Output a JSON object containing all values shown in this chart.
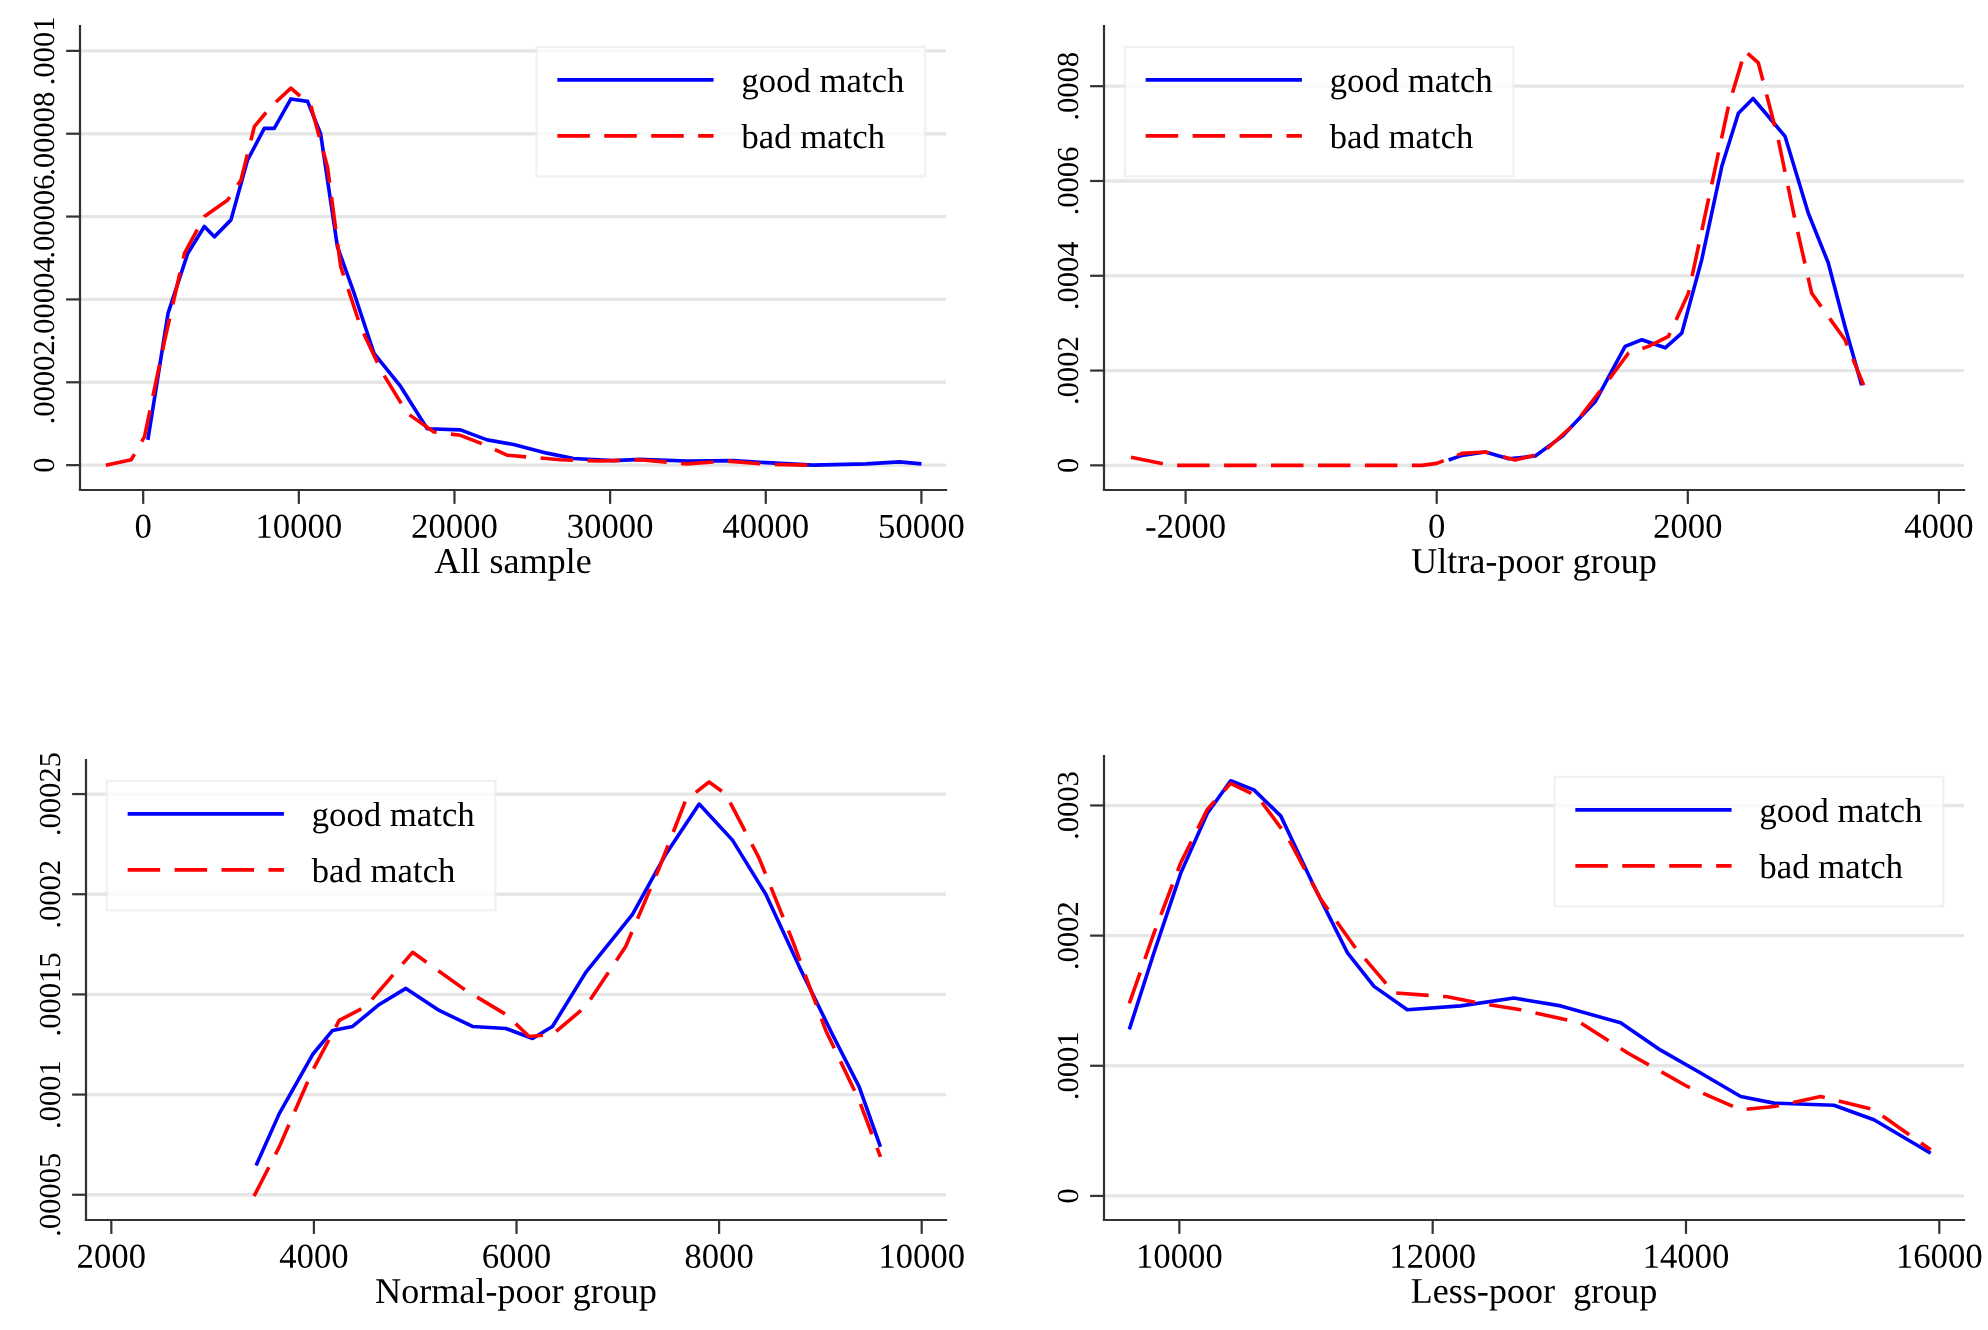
{
  "chart_data": [
    {
      "type": "line",
      "xlabel": "All sample",
      "xlim": [
        -4060,
        51580
      ],
      "ylim": [
        -6e-06,
        0.000106
      ],
      "xticks": [
        0,
        10000,
        20000,
        30000,
        40000,
        50000
      ],
      "yticks": [
        0,
        {
          "value": 2e-05,
          "label": ".00002"
        },
        {
          "value": 4e-05,
          "label": ".00004"
        },
        {
          "value": 6e-05,
          "label": ".00006"
        },
        {
          "value": 8e-05,
          "label": ".00008"
        },
        {
          "value": 0.0001,
          "label": ".0001"
        }
      ],
      "grid": "y",
      "legend": "top right",
      "series": [
        {
          "name": "good match",
          "color": "#0000ff",
          "line_style": "solid",
          "x": [
            300,
            1600,
            2860,
            3930,
            4570,
            5640,
            6700,
            7780,
            8420,
            9490,
            10560,
            11400,
            12480,
            13550,
            14830,
            16540,
            18250,
            20380,
            22100,
            23800,
            25940,
            27650,
            30210,
            31920,
            34910,
            37900,
            40040,
            43030,
            46450,
            48590,
            50000
          ],
          "values": [
            6.1e-06,
            3.67e-05,
            5.11e-05,
            5.76e-05,
            5.51e-05,
            5.92e-05,
            7.36e-05,
            8.13e-05,
            8.13e-05,
            8.84e-05,
            8.78e-05,
            8e-05,
            5.27e-05,
            4.15e-05,
            2.7e-05,
            1.9e-05,
            8.8e-06,
            8.5e-06,
            6.1e-06,
            5e-06,
            2.9e-06,
            1.6e-06,
            1.1e-06,
            1.4e-06,
            1e-06,
            1.1e-06,
            6e-07,
            0,
            3e-07,
            8e-07,
            3e-07
          ]
        },
        {
          "name": "bad match",
          "color": "#ff0000",
          "line_style": "dashed",
          "x": [
            -2400,
            -770,
            85,
            1370,
            2650,
            3930,
            5430,
            6280,
            7140,
            8200,
            9490,
            10770,
            11840,
            12690,
            13970,
            15260,
            16970,
            18680,
            20380,
            21670,
            23380,
            26800,
            29360,
            31920,
            34910,
            37470,
            40040,
            42820
          ],
          "values": [
            0,
            1.3e-06,
            6.9e-06,
            3e-05,
            5.11e-05,
            6e-05,
            6.4e-05,
            6.88e-05,
            8.17e-05,
            8.65e-05,
            9.1e-05,
            8.68e-05,
            7.2e-05,
            4.79e-05,
            3.34e-05,
            2.3e-05,
            1.25e-05,
            8e-06,
            7.2e-06,
            5.3e-06,
            2.4e-06,
            1.3e-06,
            1e-06,
            1.3e-06,
            3e-07,
            1e-06,
            2e-07,
            0
          ]
        }
      ]
    },
    {
      "type": "line",
      "xlabel": "Ultra-poor group",
      "xlim": [
        -2650,
        4200
      ],
      "ylim": [
        -5.2e-05,
        0.000927
      ],
      "xticks": [
        -2000,
        0,
        2000,
        4000
      ],
      "yticks": [
        0,
        {
          "value": 0.0002,
          "label": ".0002"
        },
        {
          "value": 0.0004,
          "label": ".0004"
        },
        {
          "value": 0.0006,
          "label": ".0006"
        },
        {
          "value": 0.0008,
          "label": ".0008"
        }
      ],
      "grid": "y",
      "legend": "top left",
      "series": [
        {
          "name": "good match",
          "color": "#0000ff",
          "line_style": "solid",
          "x": [
            95,
            202,
            387,
            573,
            785,
            997,
            1262,
            1501,
            1634,
            1820,
            1952,
            2111,
            2271,
            2403,
            2520,
            2642,
            2775,
            2960,
            3119,
            3252,
            3385
          ],
          "values": [
            1.13e-05,
            2.11e-05,
            2.82e-05,
            1.41e-05,
            1.97e-05,
            6.06e-05,
            0.000134,
            0.000251,
            0.000265,
            0.000248,
            0.000279,
            0.000434,
            0.000631,
            0.000743,
            0.000774,
            0.000736,
            0.000694,
            0.000532,
            0.000427,
            0.000293,
            0.000169
          ]
        },
        {
          "name": "bad match",
          "color": "#ff0000",
          "line_style": "dashed",
          "x": [
            -2435,
            -2117,
            -117,
            0,
            202,
            387,
            626,
            838,
            1103,
            1369,
            1528,
            1687,
            1846,
            2005,
            2164,
            2324,
            2456,
            2562,
            2721,
            2854,
            2987,
            3119,
            3252,
            3401
          ],
          "values": [
            1.7e-05,
            0,
            0,
            4.2e-06,
            2.53e-05,
            2.82e-05,
            1.13e-05,
            2.53e-05,
            8.87e-05,
            0.00018,
            0.000237,
            0.000251,
            0.000272,
            0.000363,
            0.00056,
            0.000758,
            0.000874,
            0.000849,
            0.000687,
            0.000518,
            0.000363,
            0.000314,
            0.000265,
            0.000169
          ]
        }
      ]
    },
    {
      "type": "line",
      "xlabel": "Normal-poor group",
      "xlim": [
        1750,
        10240
      ],
      "ylim": [
        3.74e-05,
        0.000267
      ],
      "xticks": [
        2000,
        4000,
        6000,
        8000,
        10000
      ],
      "yticks": [
        {
          "value": 5e-05,
          "label": ".00005"
        },
        {
          "value": 0.0001,
          "label": ".0001"
        },
        {
          "value": 0.00015,
          "label": ".00015"
        },
        {
          "value": 0.0002,
          "label": ".0002"
        },
        {
          "value": 0.00025,
          "label": ".00025"
        }
      ],
      "grid": "y",
      "legend": "top left",
      "series": [
        {
          "name": "good match",
          "color": "#0000ff",
          "line_style": "solid",
          "x": [
            3429,
            3658,
            3987,
            4184,
            4382,
            4645,
            4908,
            5237,
            5566,
            5895,
            6158,
            6355,
            6684,
            7145,
            7474,
            7803,
            8132,
            8461,
            8790,
            9119,
            9382,
            9593
          ],
          "values": [
            6.46e-05,
            9.05e-05,
            0.00012,
            0.000132,
            0.000134,
            0.000145,
            0.000153,
            0.000142,
            0.000134,
            0.000133,
            0.000128,
            0.000134,
            0.000161,
            0.00019,
            0.00022,
            0.000245,
            0.000227,
            0.0002,
            0.000164,
            0.00013,
            0.000104,
            7.39e-05
          ]
        },
        {
          "name": "bad match",
          "color": "#ff0000",
          "line_style": "dashed",
          "x": [
            3409,
            3658,
            3987,
            4250,
            4513,
            4974,
            5500,
            5895,
            6125,
            6355,
            6684,
            7079,
            7408,
            7671,
            7901,
            8066,
            8395,
            8724,
            9053,
            9382,
            9593
          ],
          "values": [
            4.93e-05,
            7.39e-05,
            0.000112,
            0.000137,
            0.000144,
            0.000171,
            0.000152,
            0.00014,
            0.000129,
            0.00013,
            0.000144,
            0.000174,
            0.000213,
            0.000247,
            0.000256,
            0.00025,
            0.000218,
            0.000177,
            0.000132,
            9.72e-05,
            6.89e-05
          ]
        }
      ]
    },
    {
      "type": "line",
      "xlabel": "Less-poor  group",
      "xlim": [
        9405,
        16195
      ],
      "ylim": [
        -1.85e-05,
        0.000338
      ],
      "xticks": [
        10000,
        12000,
        14000,
        16000
      ],
      "yticks": [
        0,
        {
          "value": 0.0001,
          "label": ".0001"
        },
        {
          "value": 0.0002,
          "label": ".0002"
        },
        {
          "value": 0.0003,
          "label": ".0003"
        }
      ],
      "grid": "y",
      "legend": "top right",
      "series": [
        {
          "name": "good match",
          "color": "#0000ff",
          "line_style": "solid",
          "x": [
            9605,
            9800,
            10011,
            10221,
            10405,
            10589,
            10800,
            11063,
            11326,
            11537,
            11800,
            12221,
            12642,
            13011,
            13484,
            13800,
            14116,
            14432,
            14695,
            15168,
            15484,
            15932
          ],
          "values": [
            0.000128,
            0.000187,
            0.000248,
            0.000294,
            0.000319,
            0.000312,
            0.000292,
            0.000238,
            0.000187,
            0.000161,
            0.000143,
            0.000146,
            0.000152,
            0.000146,
            0.000133,
            0.000112,
            9.44e-05,
            7.64e-05,
            7.13e-05,
            6.97e-05,
            5.85e-05,
            3.28e-05
          ]
        },
        {
          "name": "bad match",
          "color": "#ff0000",
          "line_style": "dashed",
          "x": [
            9605,
            9800,
            10011,
            10221,
            10405,
            10616,
            10853,
            11116,
            11379,
            11695,
            12116,
            12379,
            12695,
            13168,
            13537,
            14011,
            14432,
            14695,
            15063,
            15484,
            15932
          ],
          "values": [
            0.000148,
            0.000202,
            0.000256,
            0.000297,
            0.000317,
            0.000307,
            0.000276,
            0.000228,
            0.000192,
            0.000156,
            0.000153,
            0.000148,
            0.000143,
            0.000133,
            0.00011,
            8.41e-05,
            6.62e-05,
            6.87e-05,
            7.64e-05,
            6.62e-05,
            3.54e-05
          ]
        }
      ]
    }
  ]
}
